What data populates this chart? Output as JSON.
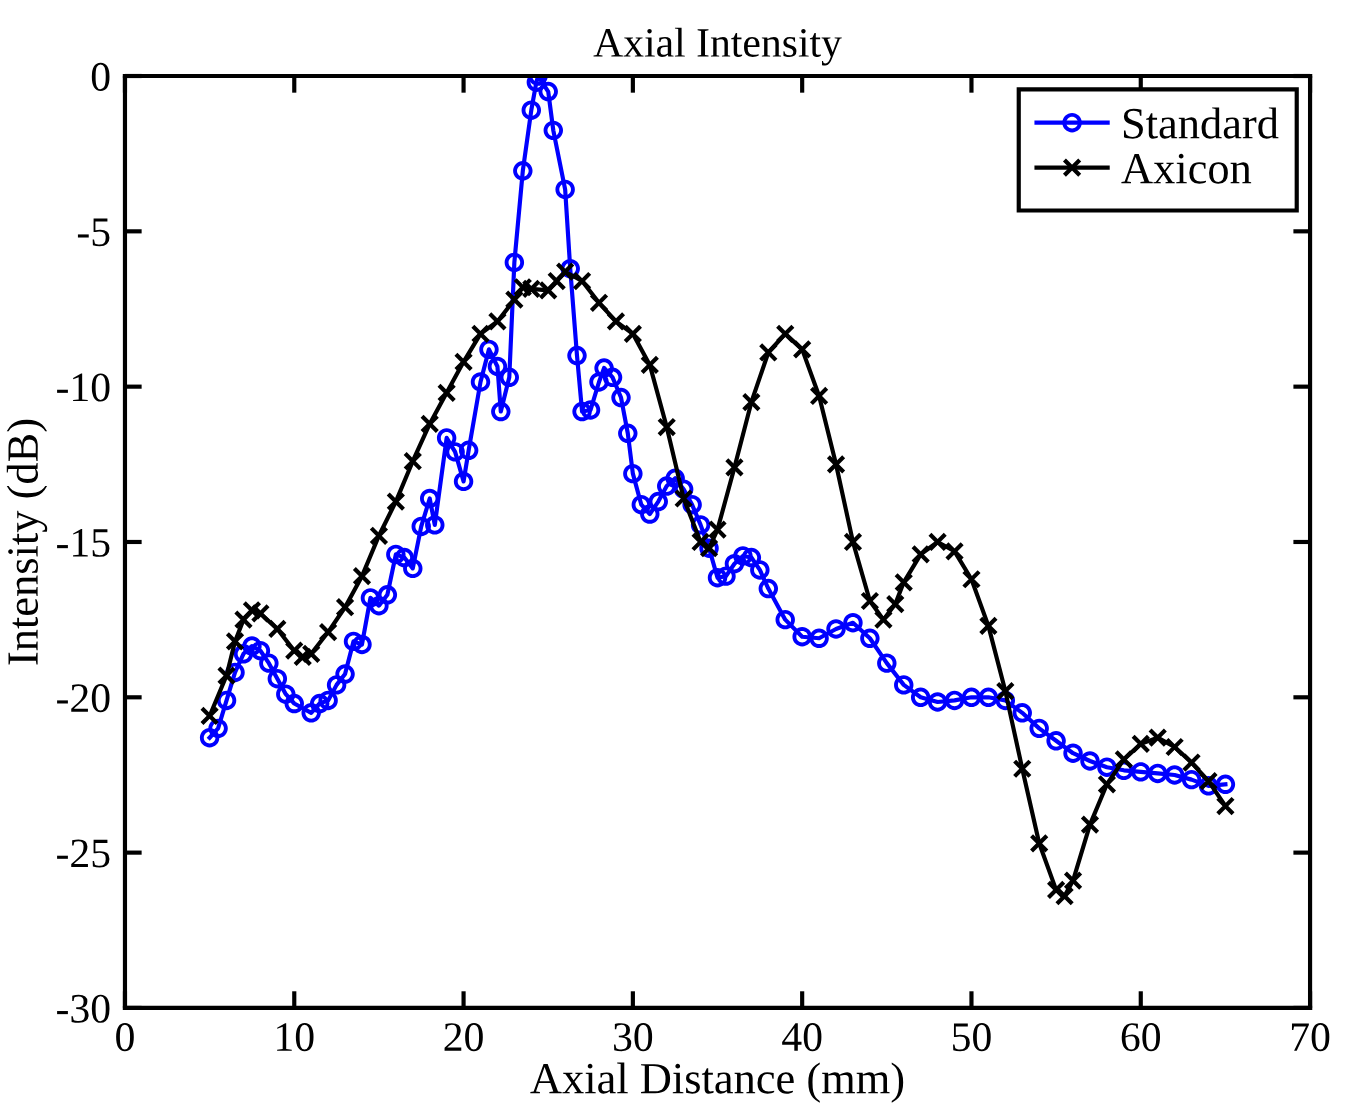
{
  "chart_data": {
    "type": "line",
    "title": "Axial Intensity",
    "xlabel": "Axial Distance (mm)",
    "ylabel": "Intensity (dB)",
    "xlim": [
      0,
      70
    ],
    "xticks": [
      0,
      10,
      20,
      30,
      40,
      50,
      60,
      70
    ],
    "ylim": [
      -30,
      0
    ],
    "yticks": [
      -30,
      -25,
      -20,
      -15,
      -10,
      -5,
      0
    ],
    "grid": false,
    "legend": "top right",
    "line_style": "solid",
    "series": [
      {
        "name": "Standard",
        "color": "#0000ff",
        "marker": "circle",
        "x": [
          5.0,
          5.5,
          6.0,
          6.5,
          7.0,
          7.5,
          8.0,
          8.5,
          9.0,
          9.5,
          10.0,
          11.0,
          11.5,
          12.0,
          12.5,
          13.0,
          13.5,
          14.0,
          14.5,
          15.0,
          15.5,
          16.0,
          16.5,
          17.0,
          17.5,
          18.0,
          18.3,
          19.0,
          19.5,
          20.0,
          20.3,
          21.0,
          21.5,
          22.0,
          22.2,
          22.7,
          23.0,
          23.5,
          24.0,
          24.3,
          24.4,
          25.0,
          25.3,
          26.0,
          26.3,
          26.7,
          27.0,
          27.5,
          28.0,
          28.3,
          28.8,
          29.3,
          29.7,
          30.0,
          30.5,
          31.0,
          31.5,
          32.0,
          32.5,
          33.0,
          33.5,
          34.0,
          34.5,
          35.0,
          35.5,
          36.0,
          36.5,
          37.0,
          37.5,
          38.0,
          39.0,
          40.0,
          41.0,
          42.0,
          43.0,
          44.0,
          45.0,
          46.0,
          47.0,
          48.0,
          49.0,
          50.0,
          51.0,
          52.0,
          53.0,
          54.0,
          55.0,
          56.0,
          57.0,
          58.0,
          59.0,
          60.0,
          61.0,
          62.0,
          63.0,
          64.0,
          65.0
        ],
        "values": [
          -21.3,
          -21.0,
          -20.1,
          -19.2,
          -18.6,
          -18.35,
          -18.5,
          -18.9,
          -19.4,
          -19.9,
          -20.2,
          -20.5,
          -20.2,
          -20.1,
          -19.6,
          -19.25,
          -18.2,
          -18.3,
          -16.8,
          -17.05,
          -16.7,
          -15.4,
          -15.5,
          -15.85,
          -14.5,
          -13.6,
          -14.45,
          -11.65,
          -12.1,
          -13.05,
          -12.05,
          -9.85,
          -8.8,
          -9.35,
          -10.8,
          -9.7,
          -6.0,
          -3.05,
          -1.1,
          -0.2,
          0,
          -0.5,
          -1.75,
          -3.65,
          -6.2,
          -9.0,
          -10.8,
          -10.75,
          -9.85,
          -9.4,
          -9.7,
          -10.35,
          -11.5,
          -12.8,
          -13.8,
          -14.1,
          -13.7,
          -13.2,
          -12.95,
          -13.3,
          -13.8,
          -14.45,
          -15.2,
          -16.15,
          -16.1,
          -15.7,
          -15.45,
          -15.5,
          -15.9,
          -16.5,
          -17.5,
          -18.05,
          -18.1,
          -17.8,
          -17.6,
          -18.1,
          -18.9,
          -19.6,
          -20.0,
          -20.15,
          -20.1,
          -20.0,
          -20.0,
          -20.1,
          -20.5,
          -21.0,
          -21.4,
          -21.8,
          -22.05,
          -22.25,
          -22.35,
          -22.4,
          -22.45,
          -22.5,
          -22.65,
          -22.85,
          -22.8
        ]
      },
      {
        "name": "Axicon",
        "color": "#000000",
        "marker": "cross",
        "x": [
          5.0,
          6.0,
          6.5,
          7.0,
          7.5,
          8.0,
          9.0,
          10.0,
          10.5,
          11.0,
          12.0,
          13.0,
          14.0,
          15.0,
          16.0,
          17.0,
          18.0,
          19.0,
          20.0,
          21.0,
          22.0,
          23.0,
          23.5,
          24.0,
          25.0,
          25.5,
          26.0,
          27.0,
          28.0,
          29.0,
          30.0,
          31.0,
          32.0,
          33.0,
          34.0,
          34.5,
          35.0,
          36.0,
          37.0,
          38.0,
          39.0,
          40.0,
          41.0,
          42.0,
          43.0,
          44.0,
          44.8,
          45.5,
          46.0,
          47.0,
          48.0,
          49.0,
          50.0,
          51.0,
          52.0,
          53.0,
          54.0,
          55.0,
          55.5,
          56.0,
          57.0,
          58.0,
          59.0,
          60.0,
          61.0,
          62.0,
          63.0,
          64.0,
          65.0
        ],
        "values": [
          -20.6,
          -19.3,
          -18.2,
          -17.5,
          -17.2,
          -17.3,
          -17.8,
          -18.5,
          -18.7,
          -18.6,
          -17.9,
          -17.1,
          -16.1,
          -14.8,
          -13.7,
          -12.4,
          -11.2,
          -10.2,
          -9.2,
          -8.3,
          -7.9,
          -7.2,
          -6.8,
          -6.85,
          -6.9,
          -6.6,
          -6.3,
          -6.6,
          -7.3,
          -7.9,
          -8.3,
          -9.3,
          -11.3,
          -13.6,
          -15.0,
          -15.2,
          -14.6,
          -12.6,
          -10.5,
          -8.9,
          -8.3,
          -8.8,
          -10.3,
          -12.5,
          -15.0,
          -16.9,
          -17.5,
          -17.0,
          -16.3,
          -15.4,
          -15.0,
          -15.3,
          -16.2,
          -17.7,
          -19.8,
          -22.3,
          -24.7,
          -26.2,
          -26.4,
          -25.9,
          -24.1,
          -22.8,
          -22.0,
          -21.5,
          -21.3,
          -21.6,
          -22.1,
          -22.7,
          -23.5
        ]
      }
    ]
  }
}
